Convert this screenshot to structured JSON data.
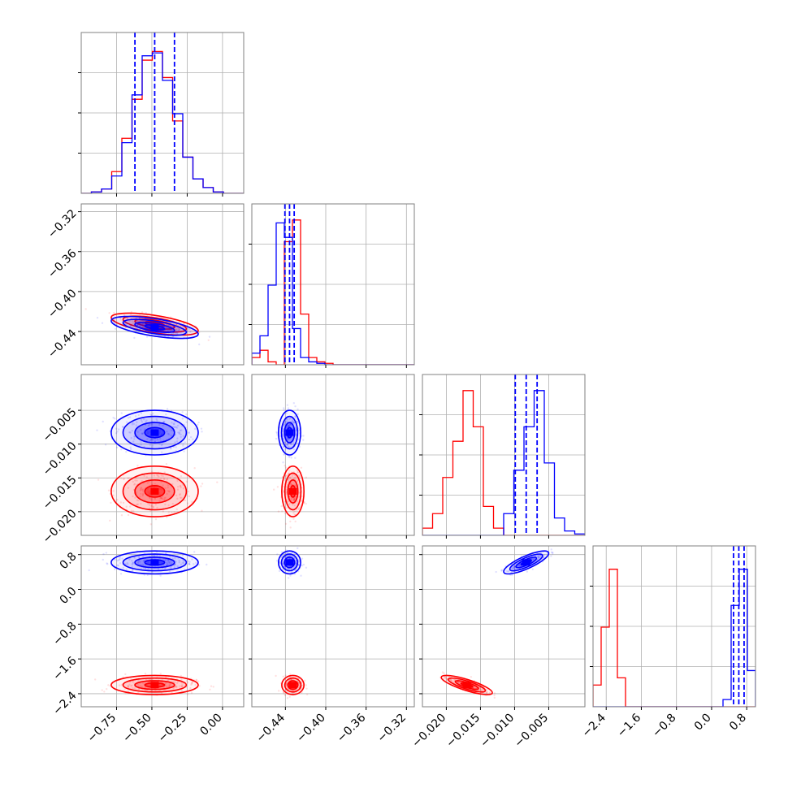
{
  "colors": {
    "series_a": "#ff0000",
    "series_b": "#0000ff",
    "grid": "#b0b0b0",
    "frame": "#000000"
  },
  "chart_data": {
    "type": "corner",
    "title": "",
    "grid": true,
    "parameters": [
      {
        "range": [
          -1.0,
          0.15
        ],
        "ticks": [
          -0.75,
          -0.5,
          -0.25,
          0.0
        ],
        "tick_labels": [
          "−0.75",
          "−0.50",
          "−0.25",
          "0.00"
        ]
      },
      {
        "range": [
          -0.4733,
          -0.3122
        ],
        "ticks": [
          -0.44,
          -0.4,
          -0.36,
          -0.32
        ],
        "tick_labels": [
          "−0.44",
          "−0.40",
          "−0.36",
          "−0.32"
        ]
      },
      {
        "range": [
          -0.0235,
          0.0003
        ],
        "ticks": [
          -0.02,
          -0.015,
          -0.01,
          -0.005
        ],
        "tick_labels": [
          "−0.020",
          "−0.015",
          "−0.010",
          "−0.005"
        ]
      },
      {
        "range": [
          -2.7,
          1.0
        ],
        "ticks": [
          -2.4,
          -1.6,
          -0.8,
          0.0,
          0.8
        ],
        "tick_labels": [
          "−2.4",
          "−1.6",
          "−0.8",
          "0.0",
          "0.8"
        ]
      }
    ],
    "series": [
      {
        "color": "#ff0000",
        "means": [
          -0.48,
          -0.4326,
          -0.017,
          -2.2
        ],
        "sds": [
          0.14,
          0.005,
          0.0017,
          0.1
        ],
        "correlations": [
          [
            0,
            1,
            -0.6
          ],
          [
            2,
            3,
            -0.8
          ]
        ],
        "histograms": [
          [
            0.0,
            0.01,
            0.03,
            0.15,
            0.38,
            0.65,
            0.92,
            0.98,
            0.8,
            0.5,
            0.25,
            0.1,
            0.04,
            0.01,
            0.0,
            0.0
          ],
          [
            0.05,
            0.1,
            0.02,
            0.0,
            0.85,
            1.0,
            0.35,
            0.05,
            0.02,
            0.01,
            0.0,
            0.0,
            0.0,
            0.0,
            0.0,
            0.0,
            0.0,
            0.0,
            0.0,
            0.0
          ],
          [
            0.05,
            0.15,
            0.4,
            0.65,
            1.0,
            0.75,
            0.2,
            0.05,
            0.0,
            0.0,
            0.0,
            0.0,
            0.0,
            0.0,
            0.0,
            0.0
          ],
          [
            0.15,
            0.55,
            0.95,
            0.2,
            0.0,
            0.0,
            0.0,
            0.0,
            0.0,
            0.0,
            0.0,
            0.0,
            0.0,
            0.0,
            0.0,
            0.0,
            0.0,
            0.0,
            0.0,
            0.0
          ]
        ]
      },
      {
        "color": "#0000ff",
        "means": [
          -0.48,
          -0.4359,
          -0.0083,
          0.62
        ],
        "sds": [
          0.14,
          0.005,
          0.0015,
          0.12
        ],
        "correlations": [
          [
            0,
            1,
            -0.6
          ],
          [
            2,
            3,
            0.8
          ]
        ],
        "histograms": [
          [
            0.0,
            0.01,
            0.03,
            0.12,
            0.35,
            0.68,
            0.95,
            0.97,
            0.78,
            0.55,
            0.25,
            0.1,
            0.04,
            0.01,
            0.0,
            0.0
          ],
          [
            0.08,
            0.2,
            0.55,
            0.98,
            0.88,
            0.25,
            0.05,
            0.02,
            0.01,
            0.0,
            0.0,
            0.0,
            0.0,
            0.0,
            0.0,
            0.0,
            0.0,
            0.0,
            0.0,
            0.0
          ],
          [
            0.0,
            0.0,
            0.0,
            0.0,
            0.0,
            0.0,
            0.0,
            0.0,
            0.15,
            0.45,
            0.75,
            1.0,
            0.5,
            0.12,
            0.03,
            0.01
          ],
          [
            0.0,
            0.0,
            0.0,
            0.0,
            0.0,
            0.0,
            0.0,
            0.0,
            0.0,
            0.0,
            0.0,
            0.0,
            0.0,
            0.0,
            0.0,
            0.0,
            0.05,
            0.7,
            0.95,
            0.25
          ]
        ],
        "quantiles": [
          [
            -0.62,
            -0.48,
            -0.34
          ],
          [
            -0.4405,
            -0.4359,
            -0.4313
          ],
          [
            -0.0099,
            -0.0083,
            -0.0067
          ],
          [
            0.5,
            0.62,
            0.74
          ]
        ]
      }
    ]
  }
}
